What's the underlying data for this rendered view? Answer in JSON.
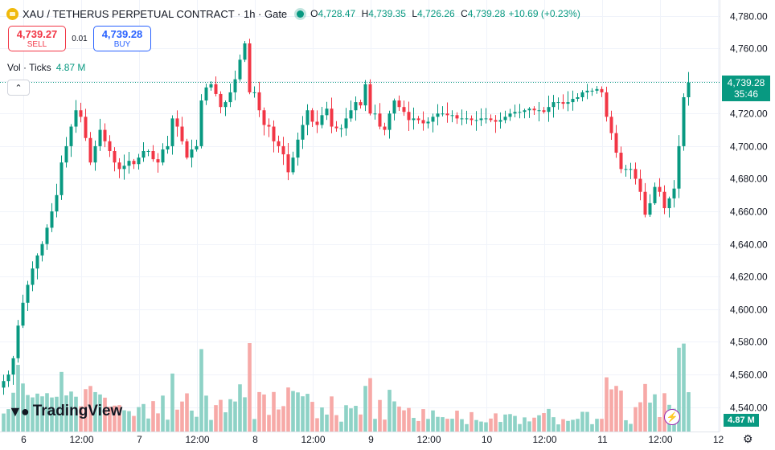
{
  "header": {
    "title": "XAU / TETHERUS PERPETUAL CONTRACT · 1h · Gate",
    "ohlc": {
      "o_label": "O",
      "o": "4,728.47",
      "h_label": "H",
      "h": "4,739.35",
      "l_label": "L",
      "l": "4,726.26",
      "c_label": "C",
      "c": "4,739.28"
    },
    "change": "+10.69 (+0.23%)"
  },
  "trade": {
    "sell_price": "4,739.27",
    "sell_label": "SELL",
    "spread": "0.01",
    "buy_price": "4,739.28",
    "buy_label": "BUY"
  },
  "volume_legend": {
    "label": "Vol · Ticks",
    "value": "4.87 M"
  },
  "last_price": {
    "price": "4,739.28",
    "countdown": "35:46"
  },
  "volume_badge": "4.87 M",
  "branding": "TradingView",
  "colors": {
    "up": "#089981",
    "down": "#f23645",
    "vol_up": "#8ed2c6",
    "vol_down": "#f7a9a7"
  },
  "icons": {
    "collapse": "chevron-up-icon",
    "bolt": "lightning-icon",
    "settings": "gear-icon",
    "logo": "tradingview-logo-icon"
  },
  "chart_data": {
    "type": "candlestick",
    "ylim": [
      4532,
      4790
    ],
    "y_ticks": [
      "4,780.00",
      "4,760.00",
      "4,740.00",
      "4,720.00",
      "4,700.00",
      "4,680.00",
      "4,660.00",
      "4,640.00",
      "4,620.00",
      "4,600.00",
      "4,580.00",
      "4,560.00",
      "4,540.00"
    ],
    "y_tick_values": [
      4780,
      4760,
      4740,
      4720,
      4700,
      4680,
      4660,
      4640,
      4620,
      4600,
      4580,
      4560,
      4540
    ],
    "x_ticks": [
      "6",
      "12:00",
      "7",
      "12:00",
      "8",
      "12:00",
      "9",
      "12:00",
      "10",
      "12:00",
      "11",
      "12:00",
      "12"
    ],
    "x_tick_bars": [
      4,
      16,
      28,
      40,
      52,
      64,
      76,
      88,
      100,
      112,
      124,
      136,
      148
    ],
    "last_price_line": 4739.28,
    "closes": [
      4556,
      4560,
      4570,
      4590,
      4604,
      4615,
      4625,
      4633,
      4640,
      4650,
      4660,
      4670,
      4690,
      4700,
      4712,
      4722,
      4718,
      4705,
      4690,
      4700,
      4710,
      4703,
      4697,
      4690,
      4686,
      4688,
      4691,
      4689,
      4693,
      4697,
      4697,
      4692,
      4690,
      4698,
      4700,
      4717,
      4712,
      4703,
      4693,
      4698,
      4700,
      4728,
      4736,
      4738,
      4732,
      4724,
      4727,
      4733,
      4741,
      4753,
      4763,
      4733,
      4733,
      4722,
      4713,
      4712,
      4703,
      4700,
      4695,
      4684,
      4693,
      4704,
      4713,
      4722,
      4715,
      4713,
      4719,
      4723,
      4712,
      4711,
      4711,
      4717,
      4722,
      4727,
      4725,
      4738,
      4720,
      4720,
      4712,
      4710,
      4720,
      4728,
      4724,
      4721,
      4716,
      4717,
      4716,
      4714,
      4715,
      4718,
      4720,
      4720,
      4719,
      4719,
      4717,
      4717,
      4717,
      4716,
      4716,
      4717,
      4717,
      4716,
      4715,
      4716,
      4718,
      4720,
      4721,
      4721,
      4722,
      4723,
      4722,
      4722,
      4721,
      4724,
      4727,
      4727,
      4726,
      4727,
      4729,
      4730,
      4733,
      4734,
      4734,
      4735,
      4733,
      4718,
      4708,
      4696,
      4686,
      4686,
      4686,
      4680,
      4672,
      4658,
      4665,
      4675,
      4672,
      4662,
      4668,
      4674,
      4700,
      4730,
      4739
    ]
  }
}
